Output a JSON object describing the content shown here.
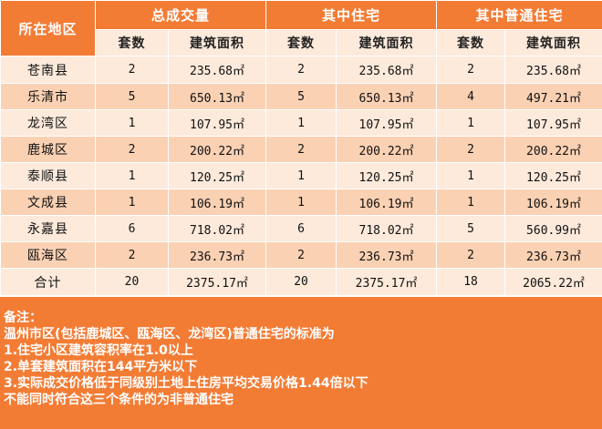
{
  "headers": {
    "region": "所在地区",
    "total_trade": "总成交量",
    "residential": "其中住宅",
    "ordinary_residential": "其中普通住宅",
    "count": "套数",
    "area": "建筑面积"
  },
  "rows": [
    {
      "region": "苍南县",
      "total_count": "2",
      "total_area": "235.68㎡",
      "res_count": "2",
      "res_area": "235.68㎡",
      "ord_count": "2",
      "ord_area": "235.68㎡"
    },
    {
      "region": "乐清市",
      "total_count": "5",
      "total_area": "650.13㎡",
      "res_count": "5",
      "res_area": "650.13㎡",
      "ord_count": "4",
      "ord_area": "497.21㎡"
    },
    {
      "region": "龙湾区",
      "total_count": "1",
      "total_area": "107.95㎡",
      "res_count": "1",
      "res_area": "107.95㎡",
      "ord_count": "1",
      "ord_area": "107.95㎡"
    },
    {
      "region": "鹿城区",
      "total_count": "2",
      "total_area": "200.22㎡",
      "res_count": "2",
      "res_area": "200.22㎡",
      "ord_count": "2",
      "ord_area": "200.22㎡"
    },
    {
      "region": "泰顺县",
      "total_count": "1",
      "total_area": "120.25㎡",
      "res_count": "1",
      "res_area": "120.25㎡",
      "ord_count": "1",
      "ord_area": "120.25㎡"
    },
    {
      "region": "文成县",
      "total_count": "1",
      "total_area": "106.19㎡",
      "res_count": "1",
      "res_area": "106.19㎡",
      "ord_count": "1",
      "ord_area": "106.19㎡"
    },
    {
      "region": "永嘉县",
      "total_count": "6",
      "total_area": "718.02㎡",
      "res_count": "6",
      "res_area": "718.02㎡",
      "ord_count": "5",
      "ord_area": "560.99㎡"
    },
    {
      "region": "瓯海区",
      "total_count": "2",
      "total_area": "236.73㎡",
      "res_count": "2",
      "res_area": "236.73㎡",
      "ord_count": "2",
      "ord_area": "236.73㎡"
    }
  ],
  "total": {
    "label": "合计",
    "total_count": "20",
    "total_area": "2375.17㎡",
    "res_count": "20",
    "res_area": "2375.17㎡",
    "ord_count": "18",
    "ord_area": "2065.22㎡"
  },
  "notes": {
    "title": "备注：",
    "line1": "温州市区(包括鹿城区、瓯海区、龙湾区)普通住宅的标准为",
    "line2": "1.住宅小区建筑容积率在1.0以上",
    "line3": "2.单套建筑面积在144平方米以下",
    "line4": "3.实际成交价格低于同级别土地上住房平均交易价格1.44倍以下",
    "line5": "不能同时符合这三个条件的为非普通住宅"
  },
  "colors": {
    "header_orange": "#f37c35",
    "row_light": "#fdeadb",
    "row_dark": "#fad1b3"
  }
}
